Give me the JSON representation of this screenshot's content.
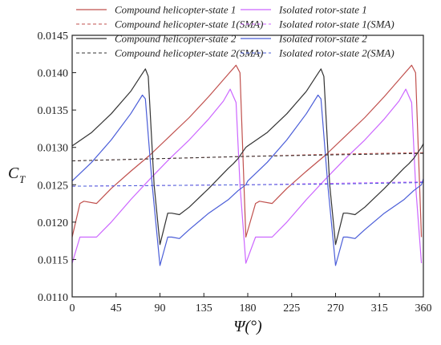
{
  "chart_data": {
    "type": "line",
    "xlabel": "Ψ(°)",
    "ylabel": "C",
    "ylabel_sub": "T",
    "xlim": [
      0,
      360
    ],
    "ylim": [
      0.011,
      0.0145
    ],
    "x_ticks": [
      0,
      45,
      90,
      135,
      180,
      225,
      270,
      315,
      360
    ],
    "y_ticks": [
      0.011,
      0.0115,
      0.012,
      0.0125,
      0.013,
      0.0135,
      0.014,
      0.0145
    ],
    "x_tick_labels": [
      "0",
      "45",
      "90",
      "135",
      "180",
      "225",
      "270",
      "315",
      "360"
    ],
    "y_tick_labels": [
      "0.0110",
      "0.0115",
      "0.0120",
      "0.0125",
      "0.0130",
      "0.0135",
      "0.0140",
      "0.0145"
    ],
    "grid": false,
    "legend_position": "top",
    "series": [
      {
        "name": "Compound helicopter-state 1",
        "color": "#c0504d",
        "dash": "solid",
        "x": [
          0,
          8,
          12,
          25,
          40,
          60,
          80,
          100,
          120,
          140,
          160,
          168,
          172,
          178,
          188,
          192,
          205,
          220,
          240,
          260,
          280,
          300,
          320,
          340,
          348,
          352,
          358
        ],
        "y": [
          0.0118,
          0.01225,
          0.01228,
          0.01225,
          0.01245,
          0.01268,
          0.0129,
          0.01315,
          0.0134,
          0.01368,
          0.01398,
          0.0141,
          0.014,
          0.0118,
          0.01225,
          0.01228,
          0.01225,
          0.01245,
          0.01268,
          0.0129,
          0.01315,
          0.0134,
          0.01368,
          0.01398,
          0.0141,
          0.014,
          0.0118
        ]
      },
      {
        "name": "Isolated rotor-state 1",
        "color": "#cc66ff",
        "dash": "solid",
        "x": [
          0,
          8,
          12,
          25,
          40,
          60,
          80,
          100,
          120,
          140,
          155,
          162,
          168,
          172,
          178,
          188,
          192,
          205,
          220,
          240,
          260,
          280,
          300,
          320,
          335,
          342,
          348,
          352,
          358
        ],
        "y": [
          0.01145,
          0.0118,
          0.0118,
          0.0118,
          0.012,
          0.0123,
          0.01258,
          0.01285,
          0.0131,
          0.01338,
          0.01362,
          0.01378,
          0.0136,
          0.0125,
          0.01145,
          0.0118,
          0.0118,
          0.0118,
          0.012,
          0.0123,
          0.01258,
          0.01285,
          0.0131,
          0.01338,
          0.01362,
          0.01378,
          0.0136,
          0.0125,
          0.01145
        ]
      },
      {
        "name": "Compound helicopter-state 1(SMA)",
        "color": "#c0504d",
        "dash": "dash",
        "x": [
          0,
          90,
          180,
          270,
          360
        ],
        "y": [
          0.01282,
          0.01285,
          0.01288,
          0.01291,
          0.01293
        ]
      },
      {
        "name": "Isolated rotor-state 1(SMA)",
        "color": "#cc66ff",
        "dash": "dash",
        "x": [
          0,
          90,
          180,
          270,
          360
        ],
        "y": [
          0.01248,
          0.01249,
          0.0125,
          0.01252,
          0.01254
        ]
      },
      {
        "name": "Compound helicopter-state 2",
        "color": "#333333",
        "dash": "solid",
        "x": [
          0,
          20,
          40,
          60,
          70,
          75,
          78,
          84,
          90,
          98,
          102,
          110,
          120,
          140,
          160,
          165,
          170,
          178,
          180,
          200,
          220,
          240,
          250,
          255,
          258,
          264,
          270,
          278,
          282,
          290,
          300,
          320,
          340,
          345,
          350,
          358,
          360
        ],
        "y": [
          0.01302,
          0.0132,
          0.01345,
          0.01375,
          0.01395,
          0.01405,
          0.01395,
          0.0125,
          0.0117,
          0.01212,
          0.01212,
          0.0121,
          0.0122,
          0.01245,
          0.01272,
          0.01278,
          0.01285,
          0.013,
          0.01302,
          0.0132,
          0.01345,
          0.01375,
          0.01395,
          0.01405,
          0.01395,
          0.0125,
          0.0117,
          0.01212,
          0.01212,
          0.0121,
          0.0122,
          0.01245,
          0.01272,
          0.01278,
          0.01285,
          0.013,
          0.01305
        ]
      },
      {
        "name": "Isolated rotor-state 2",
        "color": "#4a5dd8",
        "dash": "solid",
        "x": [
          0,
          20,
          40,
          60,
          72,
          75,
          82,
          90,
          98,
          102,
          110,
          120,
          140,
          160,
          170,
          178,
          180,
          200,
          220,
          240,
          252,
          255,
          262,
          270,
          278,
          282,
          290,
          300,
          320,
          340,
          350,
          358,
          360
        ],
        "y": [
          0.01255,
          0.0128,
          0.0131,
          0.01345,
          0.0137,
          0.01365,
          0.0125,
          0.01142,
          0.0118,
          0.0118,
          0.01178,
          0.0119,
          0.01212,
          0.0123,
          0.01242,
          0.0125,
          0.01255,
          0.0128,
          0.0131,
          0.01345,
          0.0137,
          0.01365,
          0.0125,
          0.01142,
          0.0118,
          0.0118,
          0.01178,
          0.0119,
          0.01212,
          0.0123,
          0.01242,
          0.0125,
          0.01258
        ]
      },
      {
        "name": "Compound helicopter-state 2(SMA)",
        "color": "#333333",
        "dash": "dash",
        "x": [
          0,
          90,
          180,
          270,
          360
        ],
        "y": [
          0.01282,
          0.01285,
          0.01288,
          0.0129,
          0.01292
        ]
      },
      {
        "name": "Isolated rotor-state 2(SMA)",
        "color": "#4a5dd8",
        "dash": "dash",
        "x": [
          0,
          90,
          180,
          270,
          360
        ],
        "y": [
          0.01248,
          0.01249,
          0.0125,
          0.01251,
          0.01253
        ]
      }
    ]
  }
}
